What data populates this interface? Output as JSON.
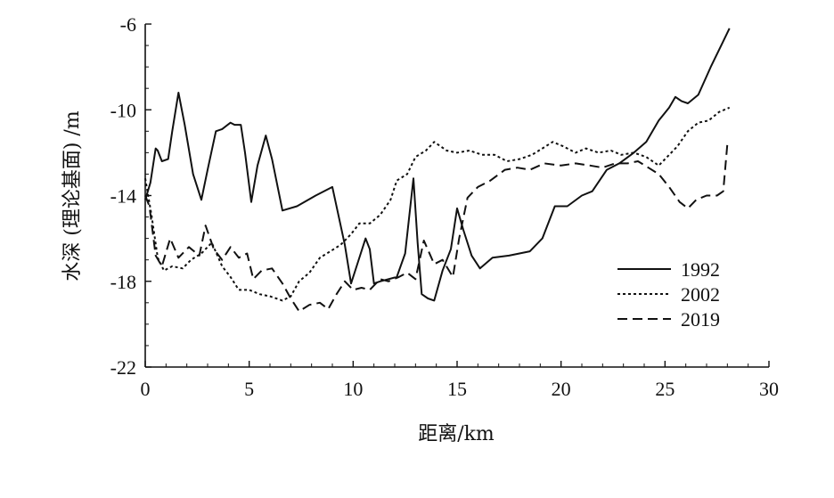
{
  "chart_data": {
    "type": "line",
    "title": "",
    "xlabel": "距离/km",
    "ylabel": "水深 (理论基面) /m",
    "xlim": [
      0,
      30
    ],
    "ylim": [
      -22,
      -6
    ],
    "xticks": [
      "0",
      "5",
      "10",
      "15",
      "20",
      "25",
      "30"
    ],
    "yticks": [
      "-6",
      "-10",
      "-14",
      "-18",
      "-22"
    ],
    "grid": false,
    "legend_position": "right",
    "series": [
      {
        "name": "1992",
        "style": "solid",
        "points": [
          [
            0,
            -14.2
          ],
          [
            0.25,
            -13.4
          ],
          [
            0.5,
            -11.8
          ],
          [
            0.6,
            -11.9
          ],
          [
            0.8,
            -12.4
          ],
          [
            1.1,
            -12.3
          ],
          [
            1.3,
            -11.0
          ],
          [
            1.6,
            -9.2
          ],
          [
            1.9,
            -10.7
          ],
          [
            2.3,
            -13.0
          ],
          [
            2.7,
            -14.2
          ],
          [
            3.0,
            -12.8
          ],
          [
            3.4,
            -11.0
          ],
          [
            3.7,
            -10.9
          ],
          [
            4.1,
            -10.6
          ],
          [
            4.3,
            -10.7
          ],
          [
            4.6,
            -10.7
          ],
          [
            4.8,
            -12.0
          ],
          [
            5.1,
            -14.3
          ],
          [
            5.4,
            -12.6
          ],
          [
            5.8,
            -11.2
          ],
          [
            6.1,
            -12.3
          ],
          [
            6.6,
            -14.7
          ],
          [
            7.3,
            -14.5
          ],
          [
            8.2,
            -14.0
          ],
          [
            9.0,
            -13.6
          ],
          [
            9.6,
            -16.3
          ],
          [
            9.9,
            -18.1
          ],
          [
            10.2,
            -17.2
          ],
          [
            10.6,
            -16.0
          ],
          [
            10.8,
            -16.5
          ],
          [
            11.0,
            -18.1
          ],
          [
            11.3,
            -18.0
          ],
          [
            12.1,
            -17.8
          ],
          [
            12.5,
            -16.7
          ],
          [
            12.9,
            -13.2
          ],
          [
            13.1,
            -16.2
          ],
          [
            13.3,
            -18.6
          ],
          [
            13.6,
            -18.8
          ],
          [
            13.9,
            -18.9
          ],
          [
            14.3,
            -17.5
          ],
          [
            14.7,
            -16.5
          ],
          [
            15.0,
            -14.6
          ],
          [
            15.3,
            -15.6
          ],
          [
            15.7,
            -16.8
          ],
          [
            16.1,
            -17.4
          ],
          [
            16.7,
            -16.9
          ],
          [
            17.5,
            -16.8
          ],
          [
            18.5,
            -16.6
          ],
          [
            19.1,
            -16.0
          ],
          [
            19.7,
            -14.5
          ],
          [
            20.3,
            -14.5
          ],
          [
            21.0,
            -14.0
          ],
          [
            21.5,
            -13.8
          ],
          [
            22.2,
            -12.8
          ],
          [
            22.8,
            -12.5
          ],
          [
            23.5,
            -12.0
          ],
          [
            24.1,
            -11.5
          ],
          [
            24.7,
            -10.5
          ],
          [
            25.2,
            -9.9
          ],
          [
            25.5,
            -9.4
          ],
          [
            25.8,
            -9.6
          ],
          [
            26.1,
            -9.7
          ],
          [
            26.6,
            -9.3
          ],
          [
            27.2,
            -8.0
          ],
          [
            27.8,
            -6.8
          ],
          [
            28.1,
            -6.2
          ]
        ]
      },
      {
        "name": "2002",
        "style": "dotted",
        "points": [
          [
            0,
            -13.2
          ],
          [
            0.3,
            -14.9
          ],
          [
            0.6,
            -16.9
          ],
          [
            0.9,
            -17.5
          ],
          [
            1.3,
            -17.3
          ],
          [
            1.8,
            -17.4
          ],
          [
            2.2,
            -17.0
          ],
          [
            2.7,
            -16.7
          ],
          [
            3.2,
            -16.2
          ],
          [
            3.7,
            -17.3
          ],
          [
            4.1,
            -17.8
          ],
          [
            4.5,
            -18.4
          ],
          [
            5.0,
            -18.4
          ],
          [
            5.5,
            -18.6
          ],
          [
            6.0,
            -18.7
          ],
          [
            6.6,
            -18.9
          ],
          [
            7.0,
            -18.7
          ],
          [
            7.4,
            -18.0
          ],
          [
            7.9,
            -17.6
          ],
          [
            8.4,
            -16.9
          ],
          [
            8.9,
            -16.6
          ],
          [
            9.4,
            -16.3
          ],
          [
            9.9,
            -15.8
          ],
          [
            10.3,
            -15.3
          ],
          [
            10.8,
            -15.3
          ],
          [
            11.3,
            -14.9
          ],
          [
            11.8,
            -14.2
          ],
          [
            12.1,
            -13.3
          ],
          [
            12.6,
            -13.0
          ],
          [
            13.0,
            -12.2
          ],
          [
            13.5,
            -11.9
          ],
          [
            13.9,
            -11.5
          ],
          [
            14.5,
            -11.9
          ],
          [
            15.0,
            -12.0
          ],
          [
            15.6,
            -11.9
          ],
          [
            16.2,
            -12.1
          ],
          [
            16.8,
            -12.1
          ],
          [
            17.4,
            -12.4
          ],
          [
            18.0,
            -12.3
          ],
          [
            18.6,
            -12.1
          ],
          [
            19.1,
            -11.8
          ],
          [
            19.6,
            -11.5
          ],
          [
            20.1,
            -11.7
          ],
          [
            20.7,
            -12.0
          ],
          [
            21.2,
            -11.8
          ],
          [
            21.8,
            -12.0
          ],
          [
            22.4,
            -11.9
          ],
          [
            22.9,
            -12.1
          ],
          [
            23.5,
            -12.0
          ],
          [
            24.1,
            -12.2
          ],
          [
            24.7,
            -12.6
          ],
          [
            25.1,
            -12.2
          ],
          [
            25.6,
            -11.7
          ],
          [
            26.1,
            -11.0
          ],
          [
            26.6,
            -10.6
          ],
          [
            27.1,
            -10.5
          ],
          [
            27.6,
            -10.1
          ],
          [
            28.1,
            -9.9
          ]
        ]
      },
      {
        "name": "2019",
        "style": "dashed",
        "points": [
          [
            0,
            -14.0
          ],
          [
            0.2,
            -14.5
          ],
          [
            0.5,
            -16.8
          ],
          [
            0.8,
            -17.3
          ],
          [
            1.2,
            -16.0
          ],
          [
            1.6,
            -16.9
          ],
          [
            2.1,
            -16.4
          ],
          [
            2.6,
            -16.8
          ],
          [
            2.9,
            -15.4
          ],
          [
            3.3,
            -16.5
          ],
          [
            3.7,
            -17.0
          ],
          [
            4.1,
            -16.4
          ],
          [
            4.5,
            -16.9
          ],
          [
            4.9,
            -16.7
          ],
          [
            5.2,
            -17.9
          ],
          [
            5.6,
            -17.5
          ],
          [
            6.1,
            -17.4
          ],
          [
            6.6,
            -18.1
          ],
          [
            7.0,
            -18.8
          ],
          [
            7.4,
            -19.4
          ],
          [
            7.9,
            -19.1
          ],
          [
            8.4,
            -19.0
          ],
          [
            8.8,
            -19.3
          ],
          [
            9.2,
            -18.6
          ],
          [
            9.6,
            -18.0
          ],
          [
            10.0,
            -18.4
          ],
          [
            10.4,
            -18.3
          ],
          [
            10.8,
            -18.4
          ],
          [
            11.3,
            -17.9
          ],
          [
            11.7,
            -18.0
          ],
          [
            12.2,
            -17.8
          ],
          [
            12.6,
            -17.6
          ],
          [
            13.0,
            -17.9
          ],
          [
            13.4,
            -16.1
          ],
          [
            13.9,
            -17.2
          ],
          [
            14.3,
            -17.0
          ],
          [
            14.8,
            -17.8
          ],
          [
            15.1,
            -16.0
          ],
          [
            15.5,
            -14.1
          ],
          [
            16.0,
            -13.6
          ],
          [
            16.6,
            -13.3
          ],
          [
            17.3,
            -12.8
          ],
          [
            17.9,
            -12.7
          ],
          [
            18.5,
            -12.8
          ],
          [
            19.2,
            -12.5
          ],
          [
            20.0,
            -12.6
          ],
          [
            20.7,
            -12.5
          ],
          [
            21.4,
            -12.6
          ],
          [
            22.0,
            -12.7
          ],
          [
            22.6,
            -12.5
          ],
          [
            23.2,
            -12.5
          ],
          [
            23.7,
            -12.4
          ],
          [
            24.2,
            -12.7
          ],
          [
            24.7,
            -13.0
          ],
          [
            25.2,
            -13.6
          ],
          [
            25.7,
            -14.3
          ],
          [
            26.1,
            -14.6
          ],
          [
            26.5,
            -14.2
          ],
          [
            27.0,
            -14.0
          ],
          [
            27.5,
            -14.0
          ],
          [
            27.8,
            -13.8
          ],
          [
            28.0,
            -11.6
          ]
        ]
      }
    ]
  }
}
